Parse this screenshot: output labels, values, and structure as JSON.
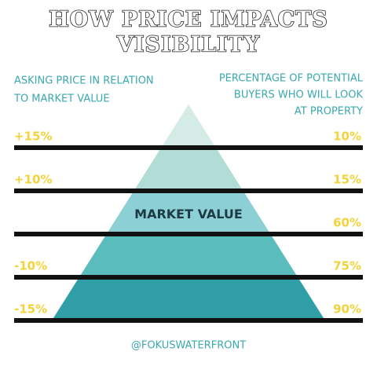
{
  "title": {
    "line1": "HOW PRICE IMPACTS",
    "line2": "VISIBILITY"
  },
  "left_heading": [
    "ASKING PRICE IN RELATION",
    "TO MARKET VALUE"
  ],
  "right_heading": [
    "PERCENTAGE OF POTENTIAL",
    "BUYERS WHO WILL LOOK",
    "AT  PROPERTY"
  ],
  "tiers": [
    {
      "price": "+15%",
      "buyers": "10%"
    },
    {
      "price": "+10%",
      "buyers": "15%"
    },
    {
      "label": "MARKET VALUE",
      "buyers": "60%"
    },
    {
      "price": "-10%",
      "buyers": "75%"
    },
    {
      "price": "-15%",
      "buyers": "90%"
    }
  ],
  "footer": "@FOKUSWATERFRONT"
}
